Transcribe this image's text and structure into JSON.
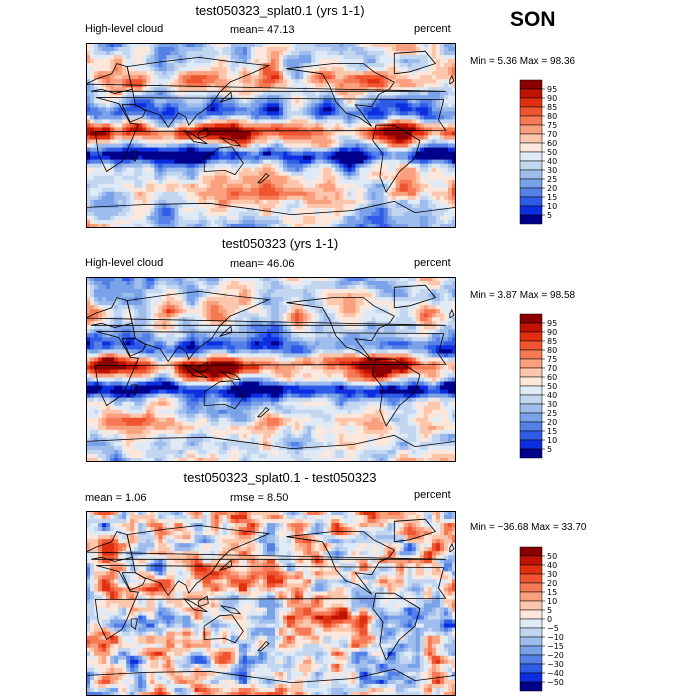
{
  "season": "SON",
  "chart_data": [
    {
      "type": "heatmap",
      "title": "test050323_splat0.1 (yrs 1-1)",
      "variable": "High-level cloud",
      "stat_text": "mean=  47.13",
      "units": "percent",
      "minmax_text": "Min =    5.36 Max =   98.36",
      "min": 5.36,
      "max": 98.36,
      "colorbar_levels": [
        "95",
        "90",
        "85",
        "80",
        "75",
        "70",
        "60",
        "50",
        "40",
        "30",
        "25",
        "20",
        "15",
        "10",
        "5"
      ],
      "colorbar_colors": [
        "#8a0000",
        "#c01200",
        "#e03010",
        "#ee5530",
        "#f57a55",
        "#f9a07e",
        "#fcc6ac",
        "#fde7da",
        "#dfeaf7",
        "#c2d6f0",
        "#9fbdec",
        "#7aa2e8",
        "#5580e6",
        "#2e5ce6",
        "#0c2ee0",
        "#00008a"
      ]
    },
    {
      "type": "heatmap",
      "title": "test050323 (yrs 1-1)",
      "variable": "High-level cloud",
      "stat_text": "mean=  46.06",
      "units": "percent",
      "minmax_text": "Min =    3.87 Max =   98.58",
      "min": 3.87,
      "max": 98.58,
      "colorbar_levels": [
        "95",
        "90",
        "85",
        "80",
        "75",
        "70",
        "60",
        "50",
        "40",
        "30",
        "25",
        "20",
        "15",
        "10",
        "5"
      ],
      "colorbar_colors": [
        "#8a0000",
        "#c01200",
        "#e03010",
        "#ee5530",
        "#f57a55",
        "#f9a07e",
        "#fcc6ac",
        "#fde7da",
        "#dfeaf7",
        "#c2d6f0",
        "#9fbdec",
        "#7aa2e8",
        "#5580e6",
        "#2e5ce6",
        "#0c2ee0",
        "#00008a"
      ]
    },
    {
      "type": "heatmap",
      "title": "test050323_splat0.1 - test050323",
      "stat_text": "mean =    1.06",
      "stat2_text": "rmse =    8.50",
      "units": "percent",
      "minmax_text": "Min = −36.68 Max =   33.70",
      "min": -36.68,
      "max": 33.7,
      "colorbar_levels": [
        "50",
        "40",
        "30",
        "20",
        "15",
        "10",
        "5",
        "0",
        "−5",
        "−10",
        "−15",
        "−20",
        "−30",
        "−40",
        "−50"
      ],
      "colorbar_colors": [
        "#8a0000",
        "#c01200",
        "#e03010",
        "#ee5530",
        "#f57a55",
        "#f9a07e",
        "#fcc6ac",
        "#fde7da",
        "#dfeaf7",
        "#c2d6f0",
        "#9fbdec",
        "#7aa2e8",
        "#5580e6",
        "#2e5ce6",
        "#0c2ee0",
        "#00008a"
      ]
    }
  ]
}
